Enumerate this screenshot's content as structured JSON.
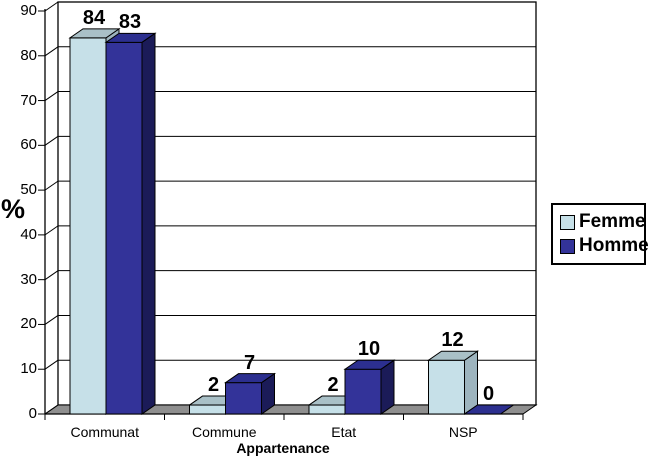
{
  "chart_data": {
    "type": "bar",
    "variant": "3d-column",
    "title": "",
    "xlabel": "Appartenance",
    "ylabel": "%",
    "categories": [
      "Communat",
      "Commune",
      "Etat",
      "NSP"
    ],
    "series": [
      {
        "name": "Femme",
        "values": [
          84,
          2,
          2,
          12
        ],
        "color": "#C6E0E8",
        "top_color": "#A9C0C7",
        "side_color": "#9DB4BE"
      },
      {
        "name": "Homme",
        "values": [
          83,
          7,
          10,
          0
        ],
        "color": "#333399",
        "top_color": "#2C2F8F",
        "side_color": "#1B1B58"
      }
    ],
    "y_ticks": [
      0,
      10,
      20,
      30,
      40,
      50,
      60,
      70,
      80,
      90
    ],
    "ylim": [
      0,
      90
    ],
    "grid": true,
    "value_labels": true,
    "legend_position": "right",
    "wall_color": "#FFFFFF",
    "floor_color": "#8F8F8F",
    "axis_color": "#000000"
  }
}
